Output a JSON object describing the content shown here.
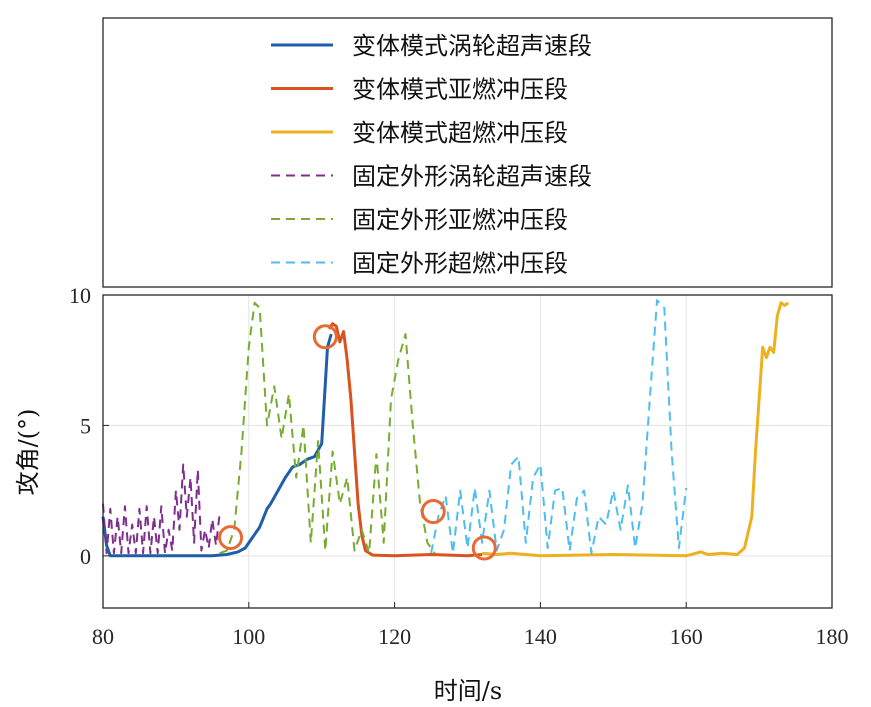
{
  "chart_data": {
    "type": "line",
    "xlabel": "时间/s",
    "ylabel": "攻角/(°)",
    "xlim": [
      80,
      180
    ],
    "ylim": [
      -2,
      10
    ],
    "xticks": [
      "80",
      "100",
      "120",
      "140",
      "160",
      "180"
    ],
    "yticks": [
      "0",
      "5",
      "10"
    ],
    "grid": true,
    "legend_position": "top",
    "series": [
      {
        "name": "变体模式涡轮超声速段",
        "color": "#1f5fa8",
        "style": "solid",
        "x": [
          80,
          80.5,
          81,
          85,
          90,
          95,
          97,
          98.5,
          99.5,
          100.5,
          101.5,
          102.5,
          103,
          104,
          105,
          106,
          107,
          108,
          109,
          110,
          110.8,
          111.3
        ],
        "y": [
          1.5,
          0.4,
          0,
          0,
          0,
          0,
          0.05,
          0.15,
          0.3,
          0.7,
          1.1,
          1.8,
          2.0,
          2.5,
          3.0,
          3.4,
          3.5,
          3.7,
          3.8,
          4.3,
          8.0,
          8.5
        ]
      },
      {
        "name": "变体模式亚燃冲压段",
        "color": "#d9531e",
        "style": "solid",
        "x": [
          111,
          111.5,
          112,
          112.5,
          113,
          113.5,
          114,
          114.5,
          115,
          115.5,
          116,
          117,
          120,
          125,
          130,
          132
        ],
        "y": [
          8.7,
          8.9,
          8.8,
          8.2,
          8.6,
          7.5,
          6.0,
          4.0,
          2.0,
          0.8,
          0.2,
          0.03,
          0,
          0.05,
          0,
          0.05
        ]
      },
      {
        "name": "变体模式超燃冲压段",
        "color": "#edb120",
        "style": "solid",
        "x": [
          132,
          134,
          136,
          140,
          150,
          160,
          162,
          163,
          165,
          167,
          168,
          169,
          169.5,
          170,
          170.5,
          171,
          171.5,
          172,
          172.5,
          173,
          173.5,
          174
        ],
        "y": [
          0.1,
          0.05,
          0.1,
          0,
          0.05,
          0,
          0.15,
          0.05,
          0.1,
          0.05,
          0.3,
          1.5,
          4.0,
          6.0,
          8.0,
          7.6,
          8.0,
          7.8,
          9.2,
          9.7,
          9.6,
          9.7
        ]
      },
      {
        "name": "固定外形涡轮超声速段",
        "color": "#7e2f8e",
        "style": "dashed",
        "x": [
          80,
          80.5,
          81,
          81.5,
          82,
          82.5,
          83,
          83.5,
          84,
          84.5,
          85,
          85.5,
          86,
          86.5,
          87,
          87.5,
          88,
          88.5,
          89,
          89.5,
          90,
          90.5,
          91,
          91.5,
          92,
          92.5,
          93,
          93.5,
          94,
          94.5,
          95,
          95.5,
          96
        ],
        "y": [
          2.0,
          0.1,
          1.8,
          0.1,
          1.5,
          0.1,
          1.9,
          0.1,
          1.2,
          0.1,
          1.8,
          0.1,
          1.9,
          0.1,
          1.5,
          0.1,
          1.9,
          0.1,
          1.0,
          0.2,
          2.5,
          1.0,
          3.5,
          1.5,
          3.0,
          0.5,
          3.3,
          0.2,
          1.0,
          0.3,
          1.4,
          0.4,
          1.6
        ]
      },
      {
        "name": "固定外形亚燃冲压段",
        "color": "#77ac30",
        "style": "dashed",
        "x": [
          96,
          97,
          98,
          99,
          100,
          100.8,
          101.5,
          102.5,
          103.5,
          104.5,
          105.5,
          106.5,
          107.5,
          108.5,
          109.5,
          110.5,
          111.5,
          112.5,
          113.5,
          114.5,
          115.5,
          116.5,
          117.5,
          118.5,
          119.5,
          120.5,
          121.5,
          122.5,
          123.5,
          124.5,
          125.5
        ],
        "y": [
          0.1,
          0.2,
          1.0,
          4.0,
          8.0,
          9.7,
          9.5,
          5.0,
          6.5,
          4.5,
          6.2,
          3.0,
          5.0,
          0.5,
          4.4,
          0.2,
          4.0,
          2.0,
          3.0,
          0.2,
          1.0,
          0.1,
          3.9,
          0.5,
          6.0,
          7.5,
          8.5,
          5.0,
          2.0,
          0.5,
          0.1
        ]
      },
      {
        "name": "固定外形超燃冲压段",
        "color": "#4dbeee",
        "style": "dashed",
        "x": [
          125,
          126,
          127,
          128,
          129,
          130,
          131,
          132,
          133,
          134,
          135,
          136,
          137,
          138,
          139,
          140,
          141,
          142,
          143,
          144,
          145,
          146,
          147,
          148,
          149,
          150,
          151,
          152,
          153,
          154,
          155,
          156,
          157,
          158,
          159,
          160
        ],
        "y": [
          0.1,
          1.5,
          2.3,
          0.1,
          2.5,
          0.3,
          2.6,
          0.5,
          2.5,
          0.2,
          1.0,
          3.5,
          3.8,
          0.5,
          3.0,
          3.5,
          0.3,
          2.5,
          2.6,
          0.2,
          2.2,
          2.5,
          0.1,
          1.5,
          1.2,
          2.5,
          1.0,
          2.7,
          0.3,
          2.0,
          6.0,
          9.8,
          9.5,
          4.0,
          0.3,
          2.6
        ]
      }
    ],
    "annotations": [
      {
        "type": "circle",
        "color": "#e86a33",
        "x": 97.5,
        "y": 0.7
      },
      {
        "type": "circle",
        "color": "#e86a33",
        "x": 110.5,
        "y": 8.4
      },
      {
        "type": "circle",
        "color": "#e86a33",
        "x": 125.3,
        "y": 1.7
      },
      {
        "type": "circle",
        "color": "#e86a33",
        "x": 132.3,
        "y": 0.3
      }
    ]
  }
}
